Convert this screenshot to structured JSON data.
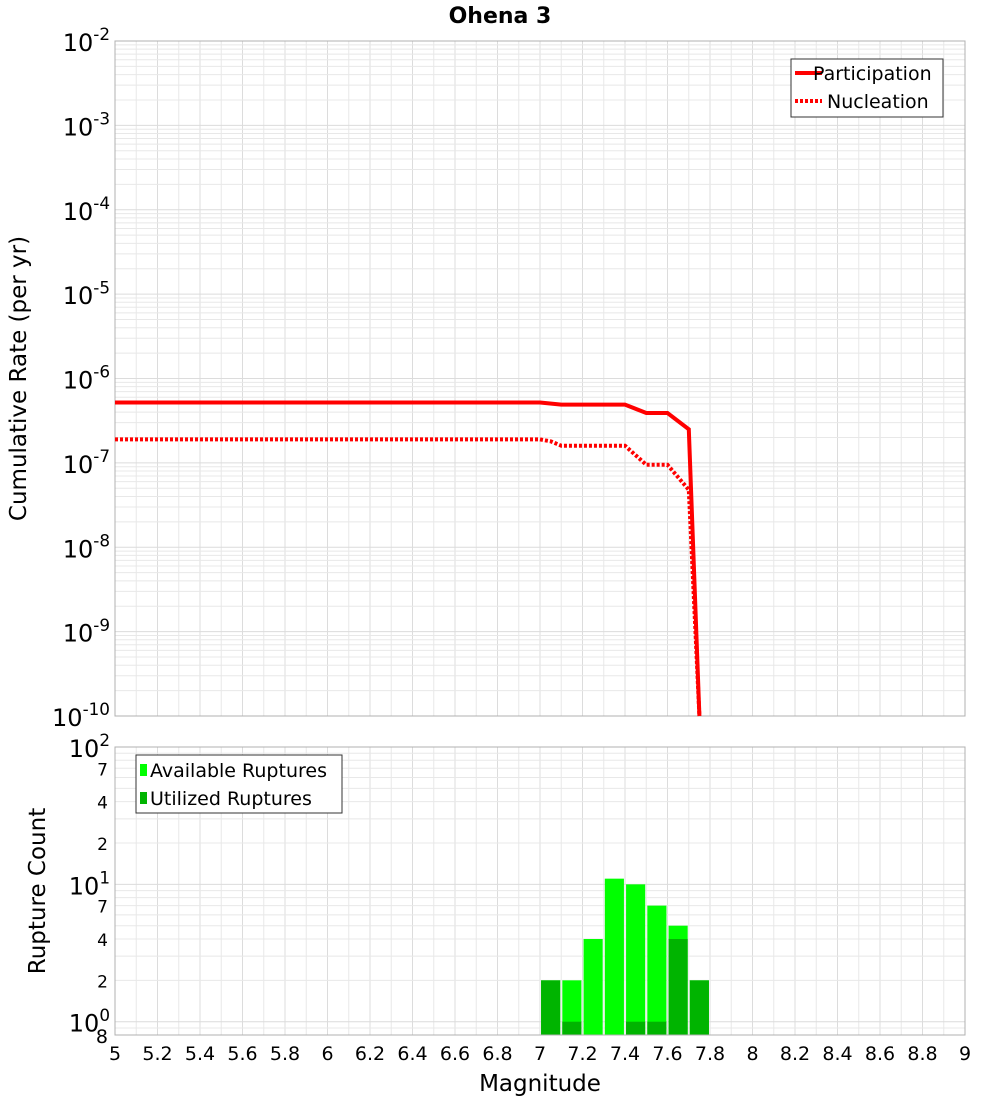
{
  "chart_data": [
    {
      "type": "line",
      "title": "Ohena 3",
      "ylabel": "Cumulative Rate (per yr)",
      "xlim": [
        5,
        9
      ],
      "ylim": [
        1e-10,
        0.01
      ],
      "yscale": "log",
      "y_ticks": [
        {
          "base": "10",
          "exp": "-2"
        },
        {
          "base": "10",
          "exp": "-3"
        },
        {
          "base": "10",
          "exp": "-4"
        },
        {
          "base": "10",
          "exp": "-5"
        },
        {
          "base": "10",
          "exp": "-6"
        },
        {
          "base": "10",
          "exp": "-7"
        },
        {
          "base": "10",
          "exp": "-8"
        },
        {
          "base": "10",
          "exp": "-9"
        },
        {
          "base": "10",
          "exp": "-10"
        }
      ],
      "legend_position": "top-right",
      "grid": true,
      "series": [
        {
          "name": "Participation",
          "color": "#ff0000",
          "style": "solid",
          "x": [
            5.0,
            6.0,
            7.0,
            7.1,
            7.2,
            7.3,
            7.4,
            7.5,
            7.6,
            7.7,
            7.75
          ],
          "y": [
            5.2e-07,
            5.2e-07,
            5.2e-07,
            4.9e-07,
            4.9e-07,
            4.9e-07,
            4.9e-07,
            3.9e-07,
            3.9e-07,
            2.5e-07,
            1e-10
          ]
        },
        {
          "name": "Nucleation",
          "color": "#ff0000",
          "style": "dotted",
          "x": [
            5.0,
            6.0,
            7.0,
            7.05,
            7.1,
            7.2,
            7.3,
            7.4,
            7.5,
            7.6,
            7.7,
            7.75
          ],
          "y": [
            1.9e-07,
            1.9e-07,
            1.9e-07,
            1.8e-07,
            1.6e-07,
            1.6e-07,
            1.6e-07,
            1.6e-07,
            9.5e-08,
            9.5e-08,
            4.8e-08,
            1e-10
          ]
        }
      ]
    },
    {
      "type": "bar",
      "xlabel": "Magnitude",
      "ylabel": "Rupture Count",
      "xlim": [
        5,
        9
      ],
      "ylim": [
        0.8,
        100
      ],
      "yscale": "log",
      "x_ticks": [
        "5",
        "5.2",
        "5.4",
        "5.6",
        "5.8",
        "6",
        "6.2",
        "6.4",
        "6.6",
        "6.8",
        "7",
        "7.2",
        "7.4",
        "7.6",
        "7.8",
        "8",
        "8.2",
        "8.4",
        "8.6",
        "8.8",
        "9"
      ],
      "y_ticks": [
        {
          "base": "10",
          "exp": "2",
          "value": 100
        },
        {
          "base": "",
          "exp": "7",
          "value": 70
        },
        {
          "base": "",
          "exp": "4",
          "value": 40
        },
        {
          "base": "",
          "exp": "2",
          "value": 20
        },
        {
          "base": "10",
          "exp": "1",
          "value": 10
        },
        {
          "base": "",
          "exp": "7",
          "value": 7
        },
        {
          "base": "",
          "exp": "4",
          "value": 4
        },
        {
          "base": "",
          "exp": "2",
          "value": 2
        },
        {
          "base": "10",
          "exp": "0",
          "value": 1
        },
        {
          "base": "8",
          "exp": "",
          "value": 0.8
        }
      ],
      "legend_position": "top-left",
      "grid": true,
      "bar_width": 0.09,
      "series": [
        {
          "name": "Available Ruptures",
          "color": "#00ff00",
          "x": [
            7.05,
            7.15,
            7.25,
            7.35,
            7.45,
            7.55,
            7.65,
            7.75
          ],
          "values": [
            2,
            2,
            4,
            11,
            10,
            7,
            5,
            2
          ]
        },
        {
          "name": "Utilized Ruptures",
          "color": "#00b400",
          "x": [
            7.05,
            7.15,
            7.25,
            7.35,
            7.45,
            7.55,
            7.65,
            7.75
          ],
          "values": [
            2,
            1,
            0,
            0,
            1,
            1,
            4,
            2
          ]
        }
      ]
    }
  ]
}
